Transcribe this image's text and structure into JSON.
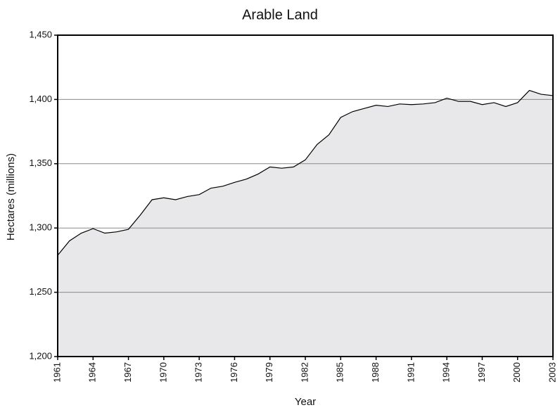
{
  "chart_data": {
    "type": "area",
    "title": "Arable Land",
    "xlabel": "Year",
    "ylabel": "Hectares (millions)",
    "x": [
      1961,
      1962,
      1963,
      1964,
      1965,
      1966,
      1967,
      1968,
      1969,
      1970,
      1971,
      1972,
      1973,
      1974,
      1975,
      1976,
      1977,
      1978,
      1979,
      1980,
      1981,
      1982,
      1983,
      1984,
      1985,
      1986,
      1987,
      1988,
      1989,
      1990,
      1991,
      1992,
      1993,
      1994,
      1995,
      1996,
      1997,
      1998,
      1999,
      2000,
      2001,
      2002,
      2003
    ],
    "values": [
      1278.8,
      1290,
      1296,
      1299.5,
      1296,
      1297,
      1299,
      1310,
      1322,
      1323.5,
      1322,
      1324.5,
      1326,
      1331,
      1332.5,
      1335.5,
      1338,
      1342,
      1347.5,
      1346.5,
      1347.5,
      1353,
      1365,
      1372.5,
      1386,
      1390.5,
      1393,
      1395.5,
      1394.5,
      1396.5,
      1396,
      1396.5,
      1397.5,
      1401,
      1398.5,
      1398.5,
      1396,
      1397.5,
      1394.5,
      1397.5,
      1407,
      1404,
      1403
    ],
    "color": "#e8e8ea",
    "line_color": "#000000",
    "xlim": [
      1961,
      2003
    ],
    "xticks": [
      1961,
      1964,
      1967,
      1970,
      1973,
      1976,
      1979,
      1982,
      1985,
      1988,
      1991,
      1994,
      1997,
      2000,
      2003
    ],
    "ylim": [
      1200,
      1450
    ],
    "yticks": [
      {
        "value": 1200,
        "label": "1,200"
      },
      {
        "value": 1250,
        "label": "1,250"
      },
      {
        "value": 1300,
        "label": "1,300"
      },
      {
        "value": 1350,
        "label": "1,350"
      },
      {
        "value": 1400,
        "label": "1,400"
      },
      {
        "value": 1450,
        "label": "1,450"
      }
    ],
    "grid": true
  }
}
